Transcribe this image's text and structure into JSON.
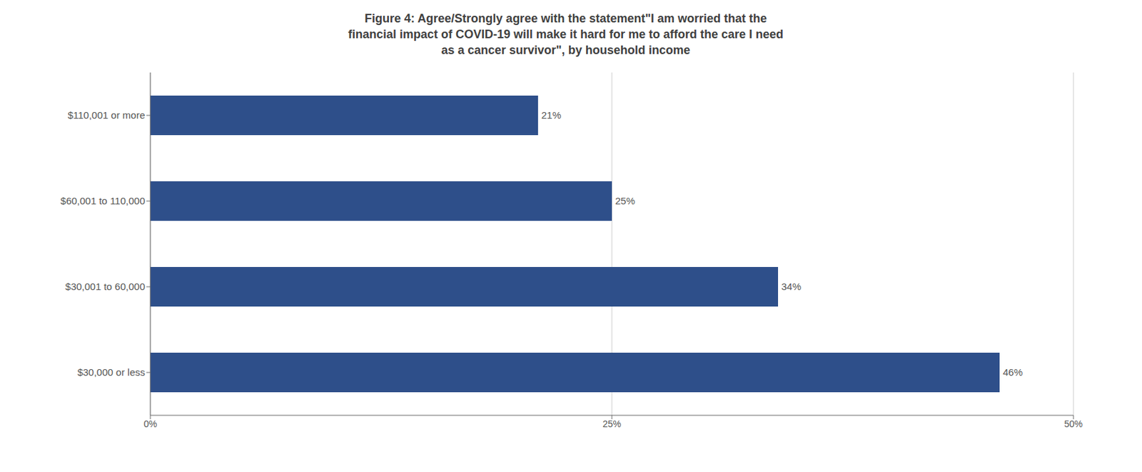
{
  "chart_data": {
    "type": "bar",
    "title": "Figure 4: Agree/Strongly agree with the statement\"I am worried that the\nfinancial impact of COVID-19 will make it hard for me to afford the care I need\nas a cancer survivor\", by household income",
    "orientation": "horizontal",
    "categories": [
      "$110,001 or more",
      "$60,001 to 110,000",
      "$30,001 to 60,000",
      "$30,000 or less"
    ],
    "values": [
      21,
      25,
      34,
      46
    ],
    "value_labels": [
      "21%",
      "25%",
      "34%",
      "46%"
    ],
    "data_labels": true,
    "color": "#2e4f8a",
    "xlim": [
      0,
      50
    ],
    "xticks": [
      {
        "value": 0,
        "label": "0%"
      },
      {
        "value": 25,
        "label": "25%"
      },
      {
        "value": 50,
        "label": "50%"
      }
    ],
    "grid": true
  }
}
